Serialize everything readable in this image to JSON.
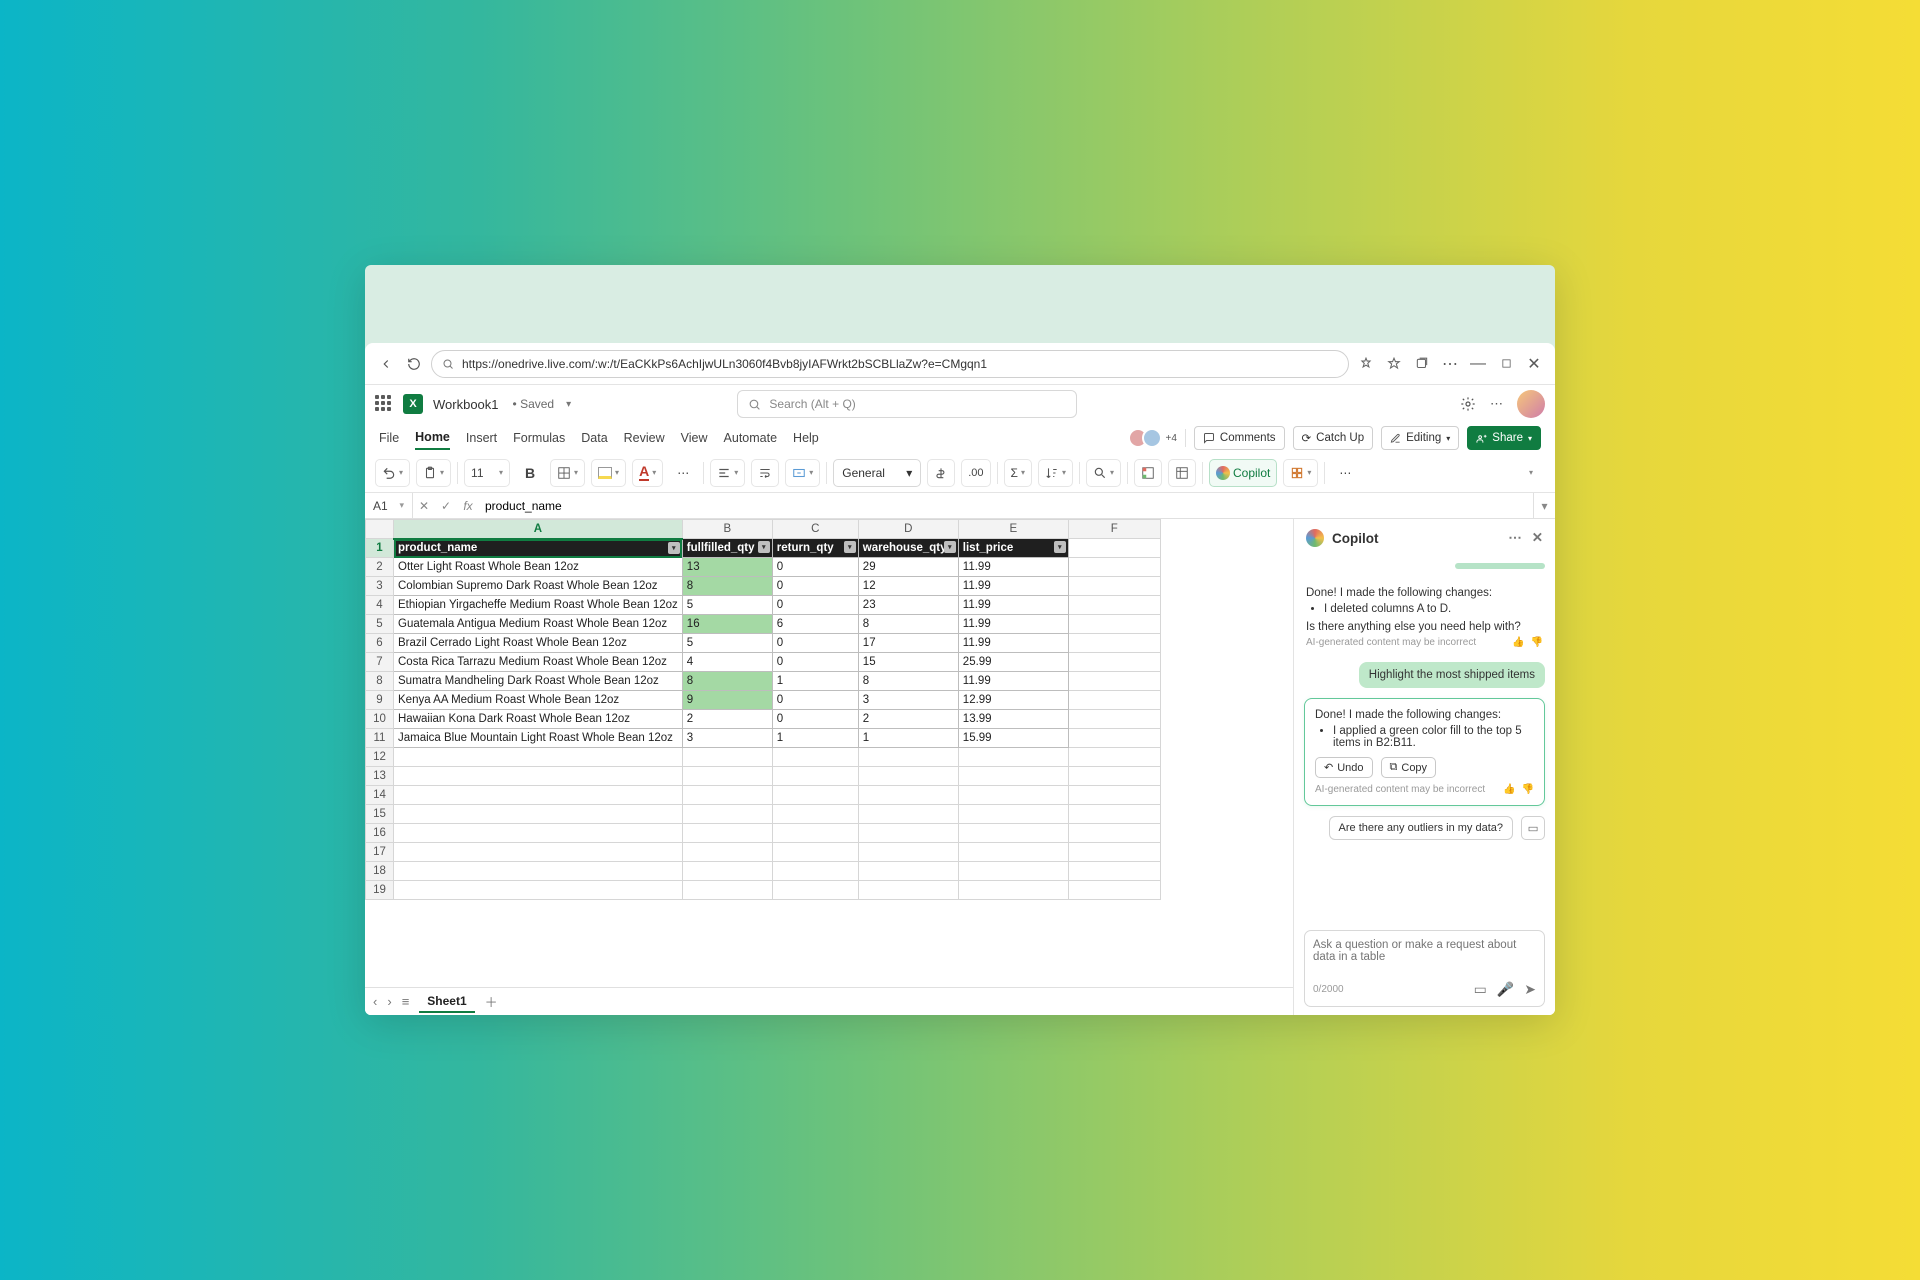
{
  "browser": {
    "url": "https://onedrive.live.com/:w:/t/EaCKkPs6AchIjwULn3060f4Bvb8jyIAFWrkt2bSCBLlaZw?e=CMgqn1"
  },
  "title": {
    "workbook": "Workbook1",
    "status": "Saved",
    "search_placeholder": "Search (Alt + Q)"
  },
  "tabs": [
    "File",
    "Home",
    "Insert",
    "Formulas",
    "Data",
    "Review",
    "View",
    "Automate",
    "Help"
  ],
  "active_tab": "Home",
  "presence_extra": "+4",
  "actions": {
    "comments": "Comments",
    "catchup": "Catch Up",
    "editing": "Editing",
    "share": "Share"
  },
  "ribbon": {
    "font_size": "11",
    "number_format": "General",
    "copilot": "Copilot"
  },
  "formula_bar": {
    "cell": "A1",
    "value": "product_name"
  },
  "sheet": {
    "columns": [
      "A",
      "B",
      "C",
      "D",
      "E",
      "F"
    ],
    "selected_col": "A",
    "col_widths_class": [
      "col-A",
      "col-B",
      "col-C",
      "col-D",
      "col-E",
      "col-F"
    ],
    "headers": [
      "product_name",
      "fullfilled_qty",
      "return_qty",
      "warehouse_qty",
      "list_price"
    ],
    "highlight_color": "#a4d9a4",
    "rows": [
      {
        "cells": [
          "Otter Light Roast Whole Bean 12oz",
          "13",
          "0",
          "29",
          "11.99"
        ],
        "hl": [
          false,
          true,
          false,
          false,
          false
        ]
      },
      {
        "cells": [
          "Colombian Supremo Dark Roast Whole Bean 12oz",
          "8",
          "0",
          "12",
          "11.99"
        ],
        "hl": [
          false,
          true,
          false,
          false,
          false
        ]
      },
      {
        "cells": [
          "Ethiopian Yirgacheffe Medium Roast Whole Bean 12oz",
          "5",
          "0",
          "23",
          "11.99"
        ],
        "hl": [
          false,
          false,
          false,
          false,
          false
        ]
      },
      {
        "cells": [
          "Guatemala Antigua Medium Roast Whole Bean 12oz",
          "16",
          "6",
          "8",
          "11.99"
        ],
        "hl": [
          false,
          true,
          false,
          false,
          false
        ]
      },
      {
        "cells": [
          "Brazil Cerrado Light Roast Whole Bean 12oz",
          "5",
          "0",
          "17",
          "11.99"
        ],
        "hl": [
          false,
          false,
          false,
          false,
          false
        ]
      },
      {
        "cells": [
          "Costa Rica Tarrazu Medium Roast Whole Bean 12oz",
          "4",
          "0",
          "15",
          "25.99"
        ],
        "hl": [
          false,
          false,
          false,
          false,
          false
        ]
      },
      {
        "cells": [
          "Sumatra Mandheling Dark Roast Whole Bean 12oz",
          "8",
          "1",
          "8",
          "11.99"
        ],
        "hl": [
          false,
          true,
          false,
          false,
          false
        ]
      },
      {
        "cells": [
          "Kenya AA Medium Roast Whole Bean 12oz",
          "9",
          "0",
          "3",
          "12.99"
        ],
        "hl": [
          false,
          true,
          false,
          false,
          false
        ]
      },
      {
        "cells": [
          "Hawaiian Kona Dark Roast Whole Bean 12oz",
          "2",
          "0",
          "2",
          "13.99"
        ],
        "hl": [
          false,
          false,
          false,
          false,
          false
        ]
      },
      {
        "cells": [
          "Jamaica Blue Mountain Light Roast Whole Bean 12oz",
          "3",
          "1",
          "1",
          "15.99"
        ],
        "hl": [
          false,
          false,
          false,
          false,
          false
        ]
      }
    ],
    "empty_rows": 8,
    "tab_name": "Sheet1"
  },
  "copilot": {
    "title": "Copilot",
    "m1_line": "Done! I made the following changes:",
    "m1_bullet": "I deleted columns A to D.",
    "m1_follow": "Is there anything else you need help with?",
    "disclaimer": "AI-generated content may be incorrect",
    "user_msg": "Highlight the most shipped items",
    "m2_line": "Done! I made the following changes:",
    "m2_bullet": "I applied a green color fill to the top 5 items in B2:B11.",
    "undo": "Undo",
    "copy": "Copy",
    "suggestion": "Are there any outliers in my data?",
    "placeholder": "Ask a question or make a request about data in a table",
    "counter": "0/2000"
  }
}
